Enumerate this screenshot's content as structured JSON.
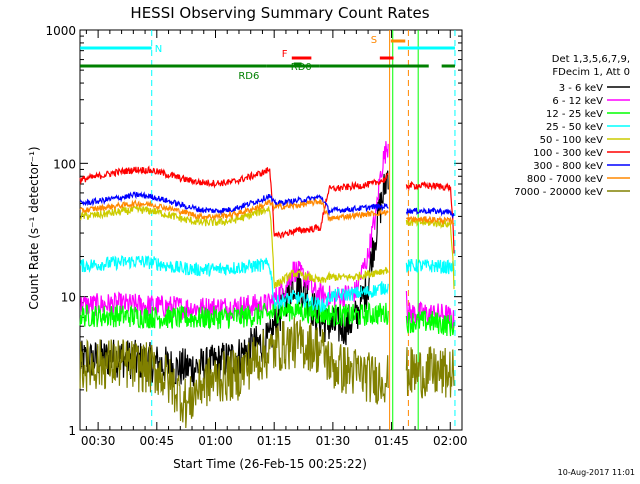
{
  "chart_data": {
    "type": "line",
    "title": "HESSI Observing Summary Count Rates",
    "ylabel": "Count Rate (s⁻¹ detector⁻¹)",
    "xlabel": "Start Time (26-Feb-15 00:25:22)",
    "yscale": "log",
    "ylim": [
      1,
      1000
    ],
    "xlim_minutes": [
      25.37,
      123.0
    ],
    "y_ticks": [
      {
        "value": 1,
        "label": "1"
      },
      {
        "value": 10,
        "label": "10"
      },
      {
        "value": 100,
        "label": "100"
      },
      {
        "value": 1000,
        "label": "1000"
      }
    ],
    "x_ticks": [
      {
        "minutes": 30,
        "label": "00:30"
      },
      {
        "minutes": 45,
        "label": "00:45"
      },
      {
        "minutes": 60,
        "label": "01:00"
      },
      {
        "minutes": 75,
        "label": "01:15"
      },
      {
        "minutes": 90,
        "label": "01:30"
      },
      {
        "minutes": 105,
        "label": "01:45"
      },
      {
        "minutes": 120,
        "label": "02:00"
      }
    ],
    "legend": {
      "placement": "right",
      "header": [
        "Det 1,3,5,6,7,9,",
        "FDecim 1, Att 0"
      ]
    },
    "series": [
      {
        "name": "3 - 6 keV",
        "color": "#000000",
        "level": 3.0,
        "points": [
          [
            25.4,
            3.3
          ],
          [
            35,
            3.5
          ],
          [
            44,
            3.2
          ],
          [
            50,
            2.9
          ],
          [
            58,
            3.0
          ],
          [
            66,
            3.6
          ],
          [
            70,
            4.3
          ],
          [
            73.8,
            4.6
          ],
          [
            75,
            6
          ],
          [
            77,
            8
          ],
          [
            80,
            13
          ],
          [
            83,
            11
          ],
          [
            85,
            8
          ],
          [
            87,
            6.5
          ],
          [
            90,
            6
          ],
          [
            93,
            6
          ],
          [
            96,
            7
          ],
          [
            99,
            12
          ],
          [
            101,
            30
          ],
          [
            103,
            60
          ],
          [
            104.2,
            90
          ]
        ]
      },
      {
        "name": "6 - 12 keV",
        "color": "#ff00ff",
        "level": 8.5,
        "points": [
          [
            25.4,
            8.6
          ],
          [
            35,
            8.8
          ],
          [
            45,
            8.5
          ],
          [
            55,
            8.2
          ],
          [
            65,
            8.4
          ],
          [
            73.8,
            8.8
          ],
          [
            75,
            9.5
          ],
          [
            78,
            12
          ],
          [
            80,
            16
          ],
          [
            83,
            14
          ],
          [
            85,
            11
          ],
          [
            88,
            10
          ],
          [
            92,
            10
          ],
          [
            96,
            11
          ],
          [
            99,
            20
          ],
          [
            101,
            40
          ],
          [
            103,
            110
          ],
          [
            104.2,
            140
          ],
          [
            109,
            7.5
          ],
          [
            113,
            7.5
          ],
          [
            119,
            7.3
          ],
          [
            121,
            6.5
          ]
        ]
      },
      {
        "name": "12 - 25 keV",
        "color": "#00ff00",
        "level": 7.0,
        "points": [
          [
            25.4,
            7.2
          ],
          [
            35,
            7.2
          ],
          [
            45,
            7.0
          ],
          [
            55,
            6.9
          ],
          [
            65,
            7.0
          ],
          [
            73.8,
            7.4
          ],
          [
            76,
            7.8
          ],
          [
            80,
            8.0
          ],
          [
            85,
            7.6
          ],
          [
            90,
            7.3
          ],
          [
            96,
            7.2
          ],
          [
            100,
            7.4
          ],
          [
            104.2,
            7.5
          ],
          [
            109,
            6.5
          ],
          [
            115,
            6.5
          ],
          [
            121,
            6.0
          ]
        ]
      },
      {
        "name": "25 - 50 keV",
        "color": "#00ffff",
        "level": 18,
        "points": [
          [
            25.4,
            17
          ],
          [
            30,
            17.5
          ],
          [
            35,
            18
          ],
          [
            40,
            18.5
          ],
          [
            45,
            17.8
          ],
          [
            50,
            16.5
          ],
          [
            55,
            16
          ],
          [
            60,
            16
          ],
          [
            65,
            16.5
          ],
          [
            70,
            17
          ],
          [
            73.8,
            17.5
          ],
          [
            75,
            9
          ],
          [
            78,
            9.5
          ],
          [
            80,
            10
          ],
          [
            85,
            9
          ],
          [
            88,
            8.5
          ],
          [
            89,
            10
          ],
          [
            95,
            10.5
          ],
          [
            100,
            11
          ],
          [
            104.2,
            12
          ],
          [
            109,
            17
          ],
          [
            115,
            17
          ],
          [
            121,
            16.5
          ]
        ]
      },
      {
        "name": "50 - 100 keV",
        "color": "#cccc00",
        "level": 42,
        "points": [
          [
            25.4,
            40
          ],
          [
            30,
            41
          ],
          [
            35,
            43
          ],
          [
            40,
            45
          ],
          [
            44,
            44
          ],
          [
            48,
            41
          ],
          [
            52,
            38
          ],
          [
            56,
            36
          ],
          [
            60,
            36
          ],
          [
            64,
            37
          ],
          [
            68,
            40
          ],
          [
            72,
            44
          ],
          [
            73.8,
            46
          ],
          [
            75,
            12
          ],
          [
            80,
            15
          ],
          [
            84,
            14
          ],
          [
            87,
            13
          ],
          [
            89,
            14
          ],
          [
            95,
            14
          ],
          [
            100,
            15
          ],
          [
            104.2,
            16
          ],
          [
            109,
            36
          ],
          [
            115,
            36
          ],
          [
            120,
            35
          ],
          [
            121,
            11
          ]
        ]
      },
      {
        "name": "100 - 300 keV",
        "color": "#ff0000",
        "level": 80,
        "points": [
          [
            25.4,
            75
          ],
          [
            30,
            80
          ],
          [
            35,
            86
          ],
          [
            40,
            90
          ],
          [
            44,
            88
          ],
          [
            48,
            82
          ],
          [
            52,
            76
          ],
          [
            56,
            72
          ],
          [
            60,
            71
          ],
          [
            64,
            72
          ],
          [
            68,
            78
          ],
          [
            72,
            85
          ],
          [
            73.8,
            90
          ],
          [
            75,
            28
          ],
          [
            80,
            31
          ],
          [
            84,
            32
          ],
          [
            87,
            33
          ],
          [
            89,
            64
          ],
          [
            93,
            66
          ],
          [
            97,
            68
          ],
          [
            100,
            70
          ],
          [
            103,
            75
          ],
          [
            104.2,
            80
          ],
          [
            109,
            68
          ],
          [
            115,
            68
          ],
          [
            120,
            66
          ],
          [
            121,
            20
          ]
        ]
      },
      {
        "name": "300 - 800 keV",
        "color": "#0000ff",
        "level": 52,
        "points": [
          [
            25.4,
            50
          ],
          [
            30,
            52
          ],
          [
            35,
            55
          ],
          [
            40,
            58
          ],
          [
            44,
            56
          ],
          [
            48,
            52
          ],
          [
            52,
            48
          ],
          [
            56,
            45
          ],
          [
            60,
            44
          ],
          [
            64,
            45
          ],
          [
            68,
            49
          ],
          [
            72,
            54
          ],
          [
            73.8,
            57
          ],
          [
            75,
            50
          ],
          [
            80,
            52
          ],
          [
            84,
            54
          ],
          [
            87,
            56
          ],
          [
            89,
            44
          ],
          [
            93,
            45
          ],
          [
            97,
            46
          ],
          [
            100,
            47
          ],
          [
            104.2,
            48
          ],
          [
            109,
            44
          ],
          [
            115,
            44
          ],
          [
            120,
            43
          ],
          [
            121,
            40
          ]
        ]
      },
      {
        "name": "800 - 7000 keV",
        "color": "#ff8800",
        "level": 45,
        "points": [
          [
            25.4,
            44
          ],
          [
            30,
            46
          ],
          [
            35,
            48
          ],
          [
            40,
            50
          ],
          [
            44,
            49
          ],
          [
            48,
            46
          ],
          [
            52,
            43
          ],
          [
            56,
            40
          ],
          [
            60,
            40
          ],
          [
            64,
            41
          ],
          [
            68,
            44
          ],
          [
            72,
            48
          ],
          [
            73.8,
            51
          ],
          [
            75,
            47
          ],
          [
            80,
            48
          ],
          [
            84,
            50
          ],
          [
            87,
            52
          ],
          [
            89,
            38
          ],
          [
            93,
            40
          ],
          [
            97,
            41
          ],
          [
            100,
            42
          ],
          [
            104.2,
            43
          ],
          [
            109,
            38
          ],
          [
            115,
            38
          ],
          [
            120,
            37
          ],
          [
            121,
            36
          ]
        ]
      },
      {
        "name": "7000 - 20000 keV",
        "color": "#808000",
        "level": 2.5,
        "points": [
          [
            25.4,
            3.0
          ],
          [
            35,
            3.2
          ],
          [
            45,
            2.8
          ],
          [
            50,
            2.0
          ],
          [
            53,
            1.5
          ],
          [
            56,
            2.2
          ],
          [
            62,
            2.5
          ],
          [
            66,
            2.6
          ],
          [
            70,
            3.4
          ],
          [
            73.8,
            3.8
          ],
          [
            76,
            4.2
          ],
          [
            80,
            4.5
          ],
          [
            84,
            4.3
          ],
          [
            87,
            4.0
          ],
          [
            90,
            3.0
          ],
          [
            94,
            2.8
          ],
          [
            98,
            2.6
          ],
          [
            100,
            2.4
          ],
          [
            104.2,
            2.5
          ],
          [
            109,
            2.7
          ],
          [
            115,
            2.7
          ],
          [
            121,
            2.6
          ]
        ]
      }
    ],
    "state_bars": [
      {
        "label": "N",
        "color": "#00ffff",
        "segments": [
          [
            25.4,
            43.7
          ],
          [
            106.6,
            121.2
          ]
        ]
      },
      {
        "label": "RD6",
        "color": "#008000",
        "segments": [
          [
            25.4,
            73.0
          ],
          [
            73.0,
            86.5
          ],
          [
            86.5,
            114.5
          ],
          [
            117.8,
            121.2
          ]
        ]
      },
      {
        "label": "RD0",
        "color": "#008000",
        "segments": [
          [
            80.0,
            82.0
          ]
        ]
      },
      {
        "label": "F",
        "color": "#ff0000",
        "segments": [
          [
            79.5,
            84.5
          ],
          [
            102.0,
            105.5
          ]
        ]
      },
      {
        "label": "S",
        "color": "#ff8800",
        "segments": [
          [
            104.8,
            108.5
          ]
        ]
      }
    ],
    "vertical_markers": [
      {
        "minutes": 43.7,
        "color": "#00ffff",
        "style": "dashed"
      },
      {
        "minutes": 121.2,
        "color": "#00ffff",
        "style": "dashed"
      },
      {
        "minutes": 104.5,
        "color": "#ff8800",
        "style": "solid"
      },
      {
        "minutes": 105.3,
        "color": "#00ff00",
        "style": "solid"
      },
      {
        "minutes": 109.3,
        "color": "#ff8800",
        "style": "dashed"
      },
      {
        "minutes": 111.8,
        "color": "#00ff00",
        "style": "solid"
      }
    ],
    "gaps": [
      [
        104.2,
        108.8
      ]
    ],
    "footer_stamp": "10-Aug-2017 11:01"
  }
}
